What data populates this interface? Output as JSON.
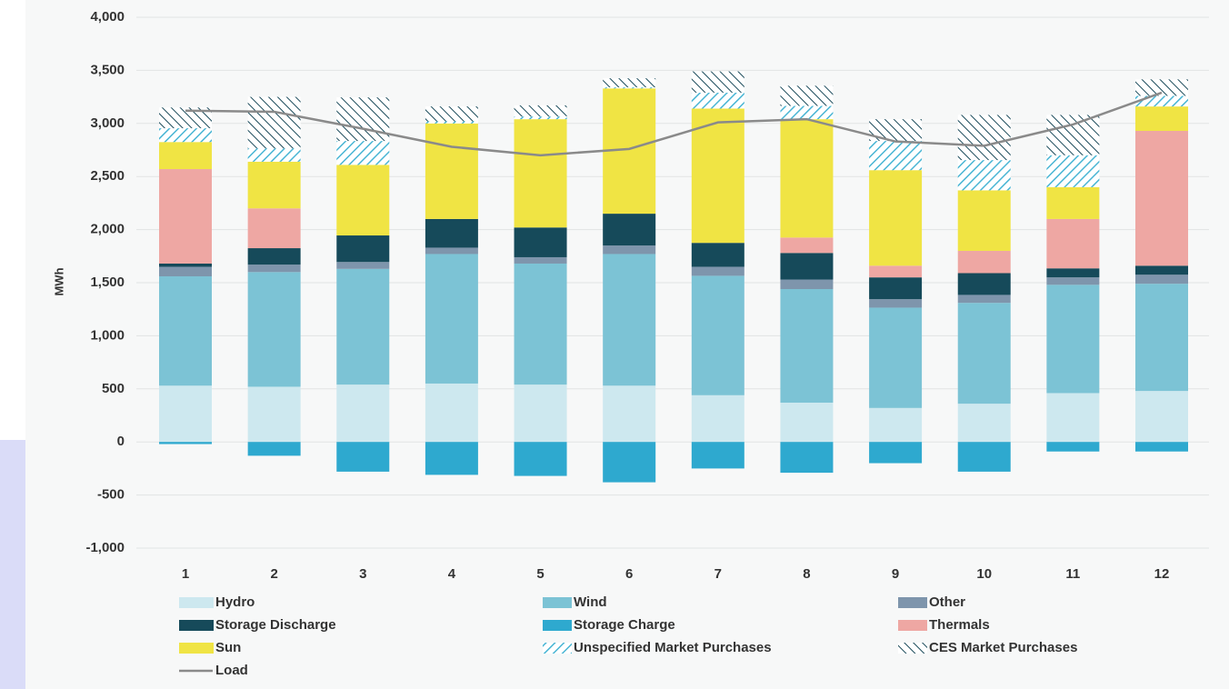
{
  "chart_data": {
    "type": "bar",
    "stacked": true,
    "y_label": "MWh",
    "categories": [
      "1",
      "2",
      "3",
      "4",
      "5",
      "6",
      "7",
      "8",
      "9",
      "10",
      "11",
      "12"
    ],
    "ylim": [
      -1000,
      4000
    ],
    "yticks": [
      {
        "value": 4000,
        "label": "4,000"
      },
      {
        "value": 3500,
        "label": "3,500"
      },
      {
        "value": 3000,
        "label": "3,000"
      },
      {
        "value": 2500,
        "label": "2,500"
      },
      {
        "value": 2000,
        "label": "2,000"
      },
      {
        "value": 1500,
        "label": "1,500"
      },
      {
        "value": 1000,
        "label": "1,000"
      },
      500,
      0,
      -500,
      {
        "value": -1000,
        "label": "-1,000"
      }
    ],
    "grid": true,
    "series": [
      {
        "name": "Hydro",
        "color": "#cde8ef",
        "values": [
          530,
          520,
          540,
          550,
          540,
          530,
          440,
          370,
          320,
          360,
          460,
          480
        ]
      },
      {
        "name": "Wind",
        "color": "#7cc3d5",
        "values": [
          1030,
          1080,
          1090,
          1220,
          1140,
          1240,
          1125,
          1070,
          945,
          950,
          1020,
          1010
        ]
      },
      {
        "name": "Other",
        "color": "#7e95ac",
        "values": [
          90,
          70,
          65,
          60,
          60,
          80,
          85,
          90,
          80,
          75,
          70,
          85
        ]
      },
      {
        "name": "Storage Discharge",
        "color": "#164a5a",
        "values": [
          30,
          155,
          250,
          270,
          280,
          300,
          225,
          250,
          205,
          205,
          85,
          85
        ]
      },
      {
        "name": "Storage Charge",
        "color": "#2ea9cf",
        "values": [
          -20,
          -130,
          -280,
          -310,
          -320,
          -380,
          -250,
          -290,
          -200,
          -280,
          -90,
          -90
        ]
      },
      {
        "name": "Thermals",
        "color": "#eea7a3",
        "values": [
          890,
          375,
          0,
          0,
          0,
          0,
          0,
          145,
          110,
          210,
          465,
          1270
        ]
      },
      {
        "name": "Sun",
        "color": "#f0e444",
        "values": [
          255,
          440,
          665,
          900,
          1020,
          1180,
          1265,
          1115,
          900,
          570,
          300,
          230
        ]
      },
      {
        "name": "Unspecified Market Purchases",
        "color": "#48b5d4",
        "hatch": true,
        "values": [
          130,
          125,
          225,
          20,
          25,
          10,
          150,
          125,
          275,
          285,
          300,
          100
        ]
      },
      {
        "name": "CES Market Purchases",
        "color": "#1a4a5a",
        "hatch": true,
        "values": [
          195,
          485,
          410,
          140,
          105,
          85,
          200,
          190,
          205,
          425,
          380,
          155
        ]
      },
      {
        "name": "Load",
        "color": "#8a8a8a",
        "type": "line",
        "values": [
          3120,
          3110,
          2950,
          2780,
          2700,
          2760,
          3010,
          3040,
          2830,
          2790,
          2990,
          3290
        ]
      }
    ]
  }
}
